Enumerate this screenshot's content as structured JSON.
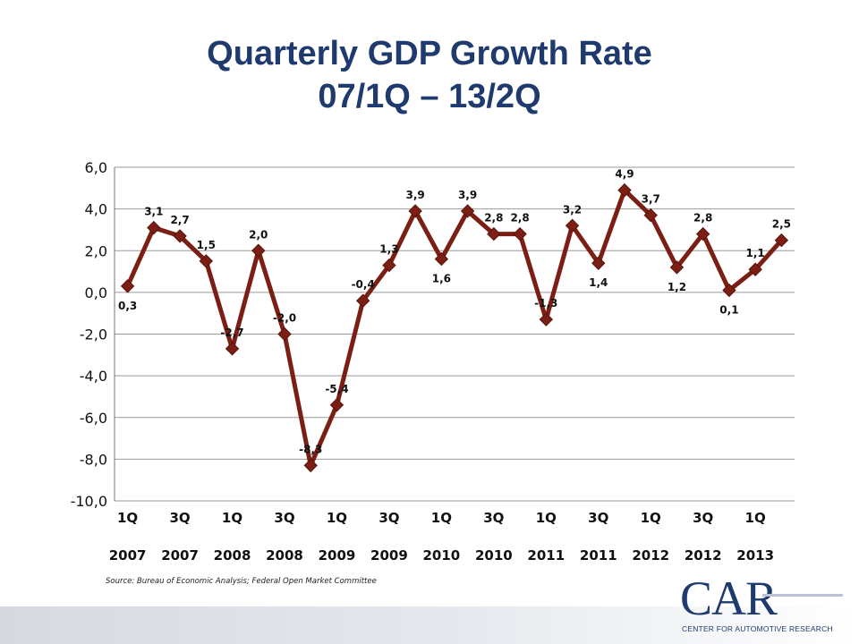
{
  "slide": {
    "title_line1": "Quarterly GDP Growth Rate",
    "title_line2": "07/1Q – 13/2Q",
    "source": "Source: Bureau of Economic Analysis; Federal Open Market Committee"
  },
  "logo": {
    "mark": "CAR",
    "subtitle": "CENTER FOR AUTOMOTIVE RESEARCH"
  },
  "colors": {
    "series": "#7b1f14",
    "title": "#1f3a6e",
    "grid": "#9a9a9a"
  },
  "chart_data": {
    "type": "line",
    "title": "Quarterly GDP Growth Rate 07/1Q – 13/2Q",
    "xlabel": "",
    "ylabel": "",
    "ylim": [
      -10,
      6
    ],
    "yticks": [
      6,
      4,
      2,
      0,
      -2,
      -4,
      -6,
      -8,
      -10
    ],
    "ytick_labels": [
      "6,0",
      "4,0",
      "2,0",
      "0,0",
      "-2,0",
      "-4,0",
      "-6,0",
      "-8,0",
      "-10,0"
    ],
    "grid": true,
    "legend": "none",
    "x_tick_labels": [
      [
        "1Q",
        "2007"
      ],
      [
        "3Q",
        "2007"
      ],
      [
        "1Q",
        "2008"
      ],
      [
        "3Q",
        "2008"
      ],
      [
        "1Q",
        "2009"
      ],
      [
        "3Q",
        "2009"
      ],
      [
        "1Q",
        "2010"
      ],
      [
        "3Q",
        "2010"
      ],
      [
        "1Q",
        "2011"
      ],
      [
        "3Q",
        "2011"
      ],
      [
        "1Q",
        "2012"
      ],
      [
        "3Q",
        "2012"
      ],
      [
        "1Q",
        "2013"
      ]
    ],
    "categories": [
      "1Q 2007",
      "2Q 2007",
      "3Q 2007",
      "4Q 2007",
      "1Q 2008",
      "2Q 2008",
      "3Q 2008",
      "4Q 2008",
      "1Q 2009",
      "2Q 2009",
      "3Q 2009",
      "4Q 2009",
      "1Q 2010",
      "2Q 2010",
      "3Q 2010",
      "4Q 2010",
      "1Q 2011",
      "2Q 2011",
      "3Q 2011",
      "4Q 2011",
      "1Q 2012",
      "2Q 2012",
      "3Q 2012",
      "4Q 2012",
      "1Q 2013",
      "2Q 2013"
    ],
    "series": [
      {
        "values": [
          0.3,
          3.1,
          2.7,
          1.5,
          -2.7,
          2.0,
          -2.0,
          -8.3,
          -5.4,
          -0.4,
          1.3,
          3.9,
          1.6,
          3.9,
          2.8,
          2.8,
          -1.3,
          3.2,
          1.4,
          4.9,
          3.7,
          1.2,
          2.8,
          0.1,
          1.1,
          2.5
        ],
        "labels": [
          "0,3",
          "3,1",
          "2,7",
          "1,5",
          "-2,7",
          "2,0",
          "-2,0",
          "-8,3",
          "-5,4",
          "-0,4",
          "1,3",
          "3,9",
          "1,6",
          "3,9",
          "2,8",
          "2,8",
          "-1,3",
          "3,2",
          "1,4",
          "4,9",
          "3,7",
          "1,2",
          "2,8",
          "0,1",
          "1,1",
          "2,5"
        ]
      }
    ]
  }
}
